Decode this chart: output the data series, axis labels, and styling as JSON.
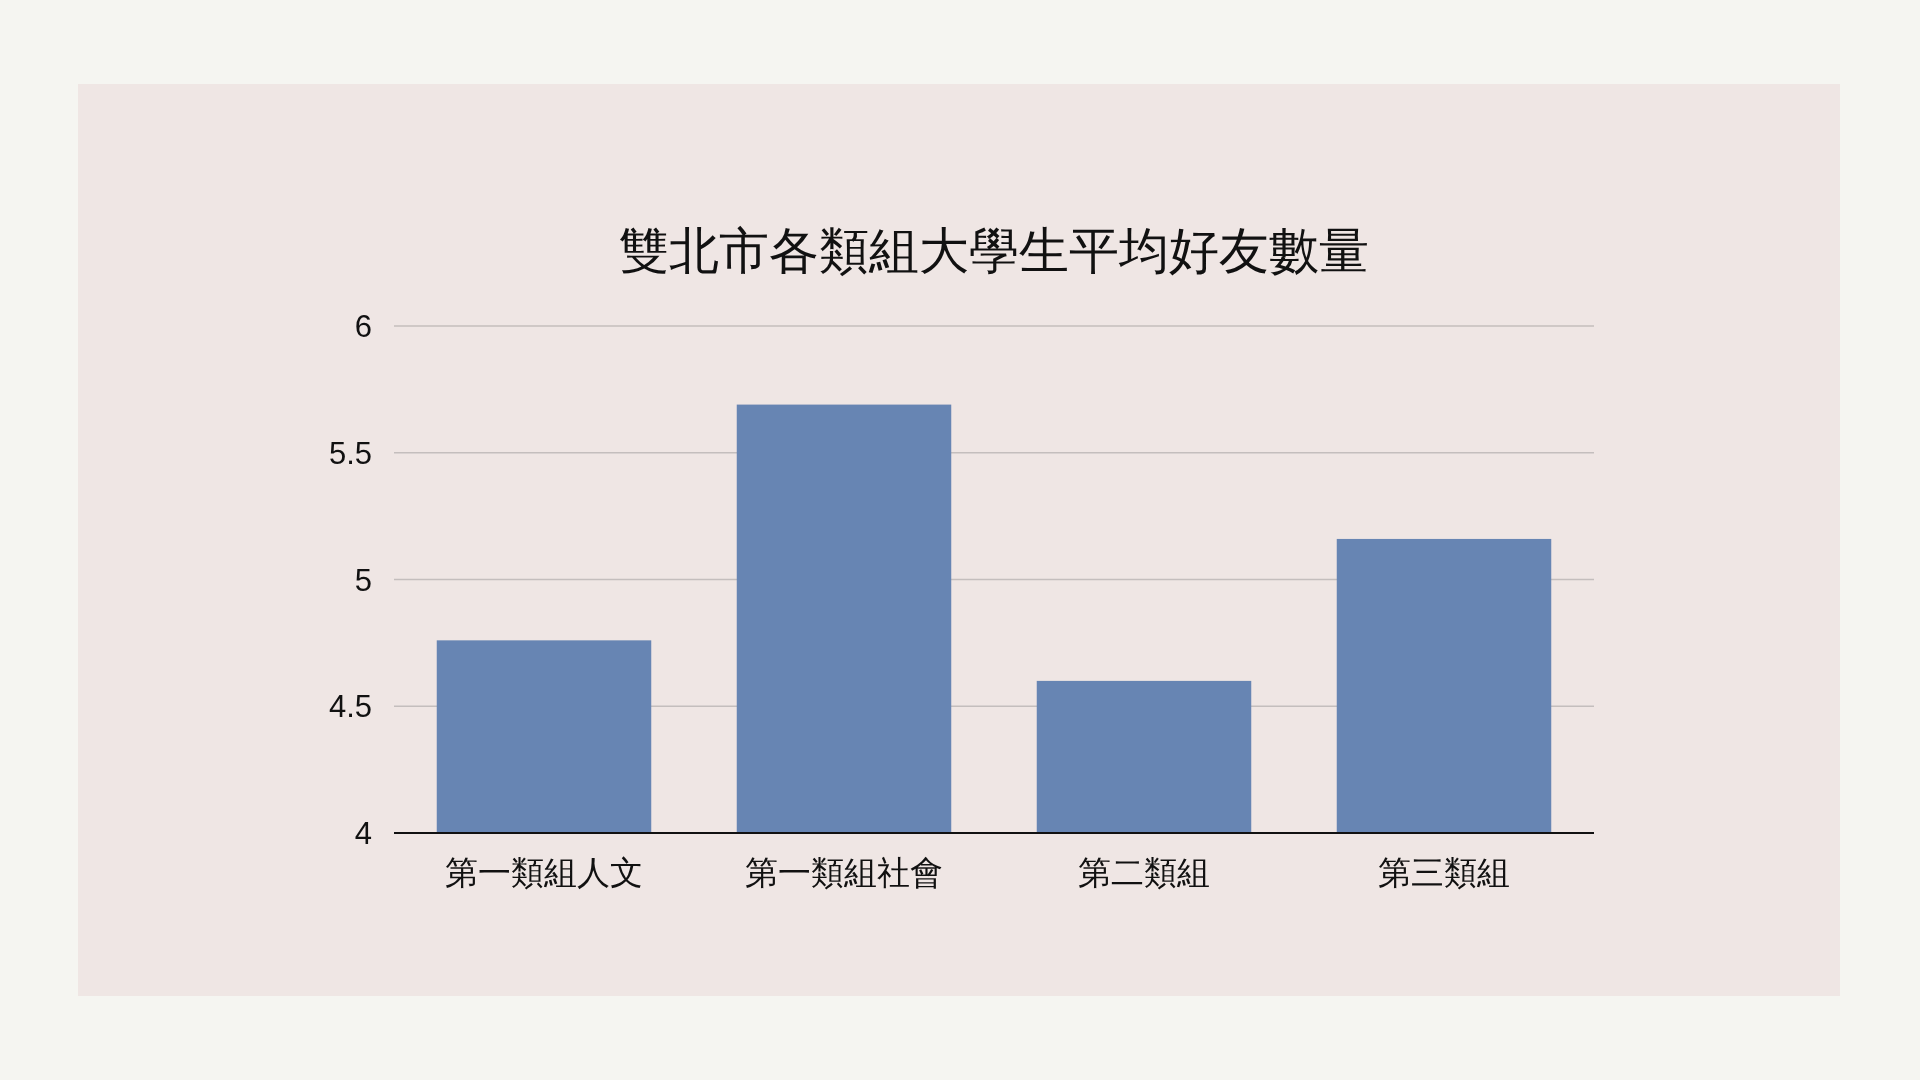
{
  "chart_data": {
    "type": "bar",
    "title": "雙北市各類組大學生平均好友數量",
    "categories": [
      "第一類組人文",
      "第一類組社會",
      "第二類組",
      "第三類組"
    ],
    "values": [
      4.76,
      5.69,
      4.6,
      5.16
    ],
    "color": "#6785b3",
    "ylim": [
      4,
      6
    ],
    "yticks": [
      4,
      4.5,
      5,
      5.5,
      6
    ],
    "grid": "y"
  }
}
